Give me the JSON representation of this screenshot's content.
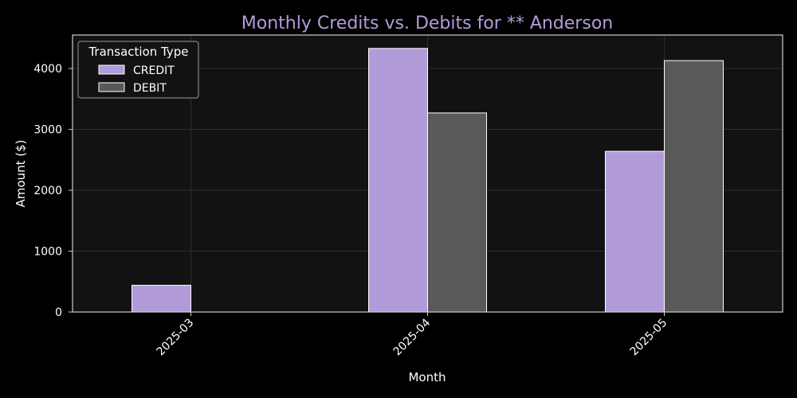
{
  "chart_data": {
    "type": "bar",
    "title": "Monthly Credits vs. Debits for ** Anderson",
    "xlabel": "Month",
    "ylabel": "Amount ($)",
    "categories": [
      "2025-03",
      "2025-04",
      "2025-05"
    ],
    "series": [
      {
        "name": "CREDIT",
        "values": [
          440,
          4330,
          2640
        ],
        "color": "#b19cd9"
      },
      {
        "name": "DEBIT",
        "values": [
          0,
          3270,
          4130
        ],
        "color": "#595959"
      }
    ],
    "ylim": [
      0,
      4550
    ],
    "yticks": [
      0,
      1000,
      2000,
      3000,
      4000
    ],
    "grid": true,
    "legend": {
      "title": "Transaction Type",
      "placement": "top-left"
    },
    "colors": {
      "figure_bg": "#000000",
      "axes_bg": "#121212",
      "grid": "#2e2e2e",
      "spine": "#cccccc",
      "text": "#ffffff",
      "title": "#b19cd9",
      "bar_edge": "#ffffff"
    }
  }
}
